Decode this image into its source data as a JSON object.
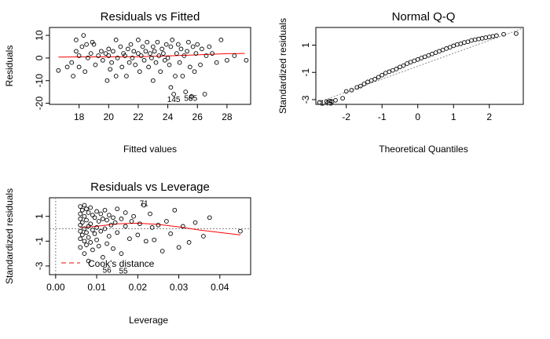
{
  "chart_data": [
    {
      "id": "rvf",
      "type": "scatter",
      "title": "Residuals vs Fitted",
      "xlabel": "Fitted values",
      "ylabel": "Residuals",
      "xlim": [
        16,
        29.6
      ],
      "ylim": [
        -20.5,
        13.5
      ],
      "xticks": [
        18,
        20,
        22,
        24,
        26,
        28
      ],
      "yticks": [
        -20,
        -10,
        0,
        10
      ],
      "grid": false,
      "smoother": [
        [
          16.6,
          0.4
        ],
        [
          18,
          0.5
        ],
        [
          20,
          0.5
        ],
        [
          22,
          0.6
        ],
        [
          24,
          0.9
        ],
        [
          26,
          1.4
        ],
        [
          28,
          1.9
        ],
        [
          29.2,
          2.0
        ]
      ],
      "smoother_color": "#ff0000",
      "labels": [
        {
          "text": "145",
          "x": 24.4,
          "y": -18
        },
        {
          "text": "56",
          "x": 25.4,
          "y": -17.5
        },
        {
          "text": "55",
          "x": 25.7,
          "y": -17.5
        }
      ],
      "points": [
        [
          16.6,
          -5.5
        ],
        [
          17.2,
          -4
        ],
        [
          17.5,
          -2
        ],
        [
          17.6,
          -8
        ],
        [
          17.8,
          3
        ],
        [
          17.8,
          8
        ],
        [
          18,
          1
        ],
        [
          18,
          -4
        ],
        [
          18.2,
          5
        ],
        [
          18.3,
          10
        ],
        [
          18.4,
          -6
        ],
        [
          18.5,
          6
        ],
        [
          18.6,
          0
        ],
        [
          18.8,
          2
        ],
        [
          18.9,
          7
        ],
        [
          19,
          6
        ],
        [
          19.1,
          -3
        ],
        [
          19.3,
          1
        ],
        [
          19.5,
          3
        ],
        [
          19.6,
          -1
        ],
        [
          19.8,
          2
        ],
        [
          19.9,
          -10
        ],
        [
          20,
          1
        ],
        [
          20,
          4
        ],
        [
          20.1,
          -5
        ],
        [
          20.2,
          -2
        ],
        [
          20.3,
          3
        ],
        [
          20.5,
          8
        ],
        [
          20.5,
          -8
        ],
        [
          20.6,
          0
        ],
        [
          20.8,
          5
        ],
        [
          20.9,
          -4
        ],
        [
          21,
          2
        ],
        [
          21.1,
          1
        ],
        [
          21.2,
          -8
        ],
        [
          21.3,
          4
        ],
        [
          21.4,
          -2
        ],
        [
          21.5,
          6
        ],
        [
          21.6,
          0
        ],
        [
          21.7,
          3
        ],
        [
          21.8,
          -3
        ],
        [
          22,
          8
        ],
        [
          22,
          2
        ],
        [
          22.1,
          -6
        ],
        [
          22.2,
          1
        ],
        [
          22.3,
          5
        ],
        [
          22.4,
          -1
        ],
        [
          22.5,
          3
        ],
        [
          22.6,
          7
        ],
        [
          22.7,
          -4
        ],
        [
          22.8,
          2
        ],
        [
          22.9,
          0
        ],
        [
          23,
          -10
        ],
        [
          23,
          5
        ],
        [
          23.1,
          3
        ],
        [
          23.2,
          -2
        ],
        [
          23.3,
          7
        ],
        [
          23.4,
          1
        ],
        [
          23.5,
          -6
        ],
        [
          23.6,
          4
        ],
        [
          23.7,
          2
        ],
        [
          23.8,
          -1
        ],
        [
          23.9,
          6
        ],
        [
          24,
          0
        ],
        [
          24.1,
          -3
        ],
        [
          24.2,
          5
        ],
        [
          24.2,
          -13
        ],
        [
          24.3,
          8
        ],
        [
          24.4,
          -16
        ],
        [
          24.5,
          -8
        ],
        [
          24.6,
          2
        ],
        [
          24.7,
          6
        ],
        [
          24.8,
          -2
        ],
        [
          24.9,
          4
        ],
        [
          25,
          -8
        ],
        [
          25.1,
          1
        ],
        [
          25.2,
          -15
        ],
        [
          25.3,
          3
        ],
        [
          25.4,
          7
        ],
        [
          25.5,
          -4
        ],
        [
          25.6,
          -17
        ],
        [
          25.7,
          5
        ],
        [
          25.8,
          -6
        ],
        [
          25.9,
          2
        ],
        [
          26,
          6
        ],
        [
          26.2,
          -3
        ],
        [
          26.3,
          4
        ],
        [
          26.5,
          -16
        ],
        [
          26.6,
          1
        ],
        [
          26.8,
          5
        ],
        [
          27,
          2
        ],
        [
          27.3,
          -2
        ],
        [
          27.6,
          8
        ],
        [
          28,
          -1
        ],
        [
          28.5,
          1
        ],
        [
          29.3,
          -1
        ]
      ]
    },
    {
      "id": "qq",
      "type": "scatter",
      "title": "Normal Q-Q",
      "xlabel": "Theoretical Quantiles",
      "ylabel": "Standardized residuals",
      "xlim": [
        -2.85,
        2.95
      ],
      "ylim": [
        -3.35,
        2.3
      ],
      "xticks": [
        -2,
        -1,
        0,
        1,
        2
      ],
      "yticks": [
        -3,
        -1,
        1
      ],
      "grid": false,
      "reference_line": [
        [
          -2.85,
          -3.25
        ],
        [
          2.95,
          2.25
        ]
      ],
      "reference_style": "dotted",
      "labels": [
        {
          "text": "145",
          "x": -2.55,
          "y": -3.2
        }
      ],
      "points": [
        [
          -2.75,
          -3.2
        ],
        [
          -2.55,
          -3.15
        ],
        [
          -2.45,
          -3.1
        ],
        [
          -2.4,
          -3.15
        ],
        [
          -2.3,
          -3.05
        ],
        [
          -2.1,
          -2.9
        ],
        [
          -2,
          -2.4
        ],
        [
          -1.85,
          -2.3
        ],
        [
          -1.7,
          -2.1
        ],
        [
          -1.6,
          -2
        ],
        [
          -1.5,
          -1.85
        ],
        [
          -1.4,
          -1.7
        ],
        [
          -1.3,
          -1.6
        ],
        [
          -1.2,
          -1.5
        ],
        [
          -1.1,
          -1.35
        ],
        [
          -1,
          -1.2
        ],
        [
          -0.9,
          -1.05
        ],
        [
          -0.8,
          -0.95
        ],
        [
          -0.7,
          -0.85
        ],
        [
          -0.6,
          -0.75
        ],
        [
          -0.5,
          -0.6
        ],
        [
          -0.4,
          -0.5
        ],
        [
          -0.3,
          -0.35
        ],
        [
          -0.2,
          -0.25
        ],
        [
          -0.1,
          -0.15
        ],
        [
          0,
          -0.05
        ],
        [
          0.1,
          0.05
        ],
        [
          0.2,
          0.15
        ],
        [
          0.3,
          0.25
        ],
        [
          0.4,
          0.35
        ],
        [
          0.5,
          0.45
        ],
        [
          0.6,
          0.55
        ],
        [
          0.7,
          0.65
        ],
        [
          0.8,
          0.75
        ],
        [
          0.9,
          0.85
        ],
        [
          1,
          0.95
        ],
        [
          1.1,
          1.05
        ],
        [
          1.2,
          1.1
        ],
        [
          1.3,
          1.2
        ],
        [
          1.4,
          1.25
        ],
        [
          1.5,
          1.35
        ],
        [
          1.6,
          1.4
        ],
        [
          1.7,
          1.45
        ],
        [
          1.8,
          1.5
        ],
        [
          1.9,
          1.55
        ],
        [
          2,
          1.6
        ],
        [
          2.1,
          1.65
        ],
        [
          2.2,
          1.7
        ],
        [
          2.4,
          1.8
        ],
        [
          2.75,
          1.85
        ]
      ]
    },
    {
      "id": "rvl",
      "type": "scatter",
      "title": "Residuals vs Leverage",
      "xlabel": "Leverage",
      "ylabel": "Standardized residuals",
      "xlim": [
        -0.0015,
        0.0475
      ],
      "ylim": [
        -3.7,
        2.5
      ],
      "xticks": [
        0.0,
        0.01,
        0.02,
        0.03,
        0.04
      ],
      "xticklabels": [
        "0.00",
        "0.01",
        "0.02",
        "0.03",
        "0.04"
      ],
      "yticks": [
        -3,
        -1,
        1
      ],
      "grid": false,
      "smoother": [
        [
          0.006,
          0.1
        ],
        [
          0.01,
          0.2
        ],
        [
          0.015,
          0.4
        ],
        [
          0.02,
          0.45
        ],
        [
          0.025,
          0.35
        ],
        [
          0.03,
          0.15
        ],
        [
          0.035,
          -0.1
        ],
        [
          0.04,
          -0.3
        ],
        [
          0.045,
          -0.5
        ]
      ],
      "smoother_color": "#ff0000",
      "legend": {
        "label": "Cook's distance",
        "position": "bottom-left",
        "line_style": "dashed",
        "color": "#ff0000"
      },
      "labels": [
        {
          "text": "71",
          "x": 0.0215,
          "y": 2.1
        },
        {
          "text": "56",
          "x": 0.0125,
          "y": -3.3
        },
        {
          "text": "55",
          "x": 0.0165,
          "y": -3.35
        }
      ],
      "points": [
        [
          0.006,
          1.8
        ],
        [
          0.006,
          1.2
        ],
        [
          0.006,
          0.8
        ],
        [
          0.006,
          0.3
        ],
        [
          0.006,
          -0.2
        ],
        [
          0.006,
          -0.8
        ],
        [
          0.006,
          -1.5
        ],
        [
          0.0065,
          1.5
        ],
        [
          0.0065,
          0.5
        ],
        [
          0.0065,
          -0.5
        ],
        [
          0.007,
          1.9
        ],
        [
          0.007,
          1.0
        ],
        [
          0.007,
          0.0
        ],
        [
          0.007,
          -1.0
        ],
        [
          0.007,
          -2.0
        ],
        [
          0.0075,
          1.6
        ],
        [
          0.0075,
          0.7
        ],
        [
          0.0075,
          -0.3
        ],
        [
          0.0075,
          -1.3
        ],
        [
          0.008,
          1.3
        ],
        [
          0.008,
          0.2
        ],
        [
          0.008,
          -0.7
        ],
        [
          0.008,
          -2.6
        ],
        [
          0.0085,
          1.7
        ],
        [
          0.0085,
          0.4
        ],
        [
          0.0085,
          -1.1
        ],
        [
          0.009,
          1.1
        ],
        [
          0.009,
          -0.1
        ],
        [
          0.009,
          -1.7
        ],
        [
          0.0095,
          0.9
        ],
        [
          0.0095,
          -0.4
        ],
        [
          0.01,
          1.4
        ],
        [
          0.01,
          0.1
        ],
        [
          0.01,
          -0.9
        ],
        [
          0.0105,
          0.6
        ],
        [
          0.0105,
          -1.4
        ],
        [
          0.011,
          1.2
        ],
        [
          0.011,
          -0.2
        ],
        [
          0.0115,
          0.8
        ],
        [
          0.0115,
          -2.3
        ],
        [
          0.012,
          1.5
        ],
        [
          0.012,
          0.0
        ],
        [
          0.0125,
          0.7
        ],
        [
          0.0125,
          -1.2
        ],
        [
          0.013,
          1.1
        ],
        [
          0.013,
          -0.6
        ],
        [
          0.0135,
          0.3
        ],
        [
          0.014,
          0.9
        ],
        [
          0.014,
          -1.6
        ],
        [
          0.0145,
          0.5
        ],
        [
          0.015,
          1.6
        ],
        [
          0.015,
          -0.3
        ],
        [
          0.016,
          0.8
        ],
        [
          0.016,
          -2.0
        ],
        [
          0.017,
          0.2
        ],
        [
          0.017,
          1.3
        ],
        [
          0.018,
          -0.8
        ],
        [
          0.0185,
          0.6
        ],
        [
          0.019,
          1.0
        ],
        [
          0.02,
          -0.5
        ],
        [
          0.0205,
          0.4
        ],
        [
          0.0215,
          1.9
        ],
        [
          0.022,
          -1.0
        ],
        [
          0.023,
          1.2
        ],
        [
          0.0235,
          0.1
        ],
        [
          0.024,
          -0.9
        ],
        [
          0.025,
          0.3
        ],
        [
          0.026,
          -1.8
        ],
        [
          0.027,
          0.6
        ],
        [
          0.028,
          -0.4
        ],
        [
          0.029,
          1.5
        ],
        [
          0.03,
          -1.5
        ],
        [
          0.031,
          0.2
        ],
        [
          0.0325,
          -1.1
        ],
        [
          0.034,
          0.5
        ],
        [
          0.036,
          -0.6
        ],
        [
          0.0375,
          0.9
        ],
        [
          0.045,
          -0.2
        ]
      ]
    }
  ]
}
